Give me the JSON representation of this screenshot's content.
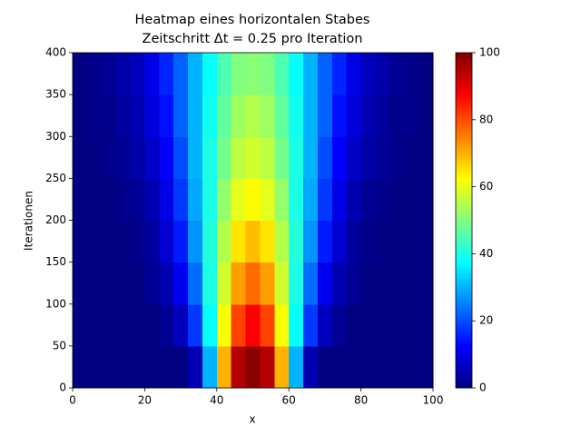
{
  "chart_data": {
    "type": "heatmap",
    "title": "Heatmap eines horizontalen Stabes",
    "subtitle": "Zeitschritt Δt = 0.25 pro Iteration",
    "x_label": "x",
    "y_label": "Iterationen",
    "colormap": "jet",
    "xbins": [
      0,
      4,
      8,
      12,
      16,
      20,
      24,
      28,
      32,
      36,
      40,
      44,
      48,
      52,
      56,
      60,
      64,
      68,
      72,
      76,
      80,
      84,
      88,
      92,
      96,
      100
    ],
    "ybins": [
      0,
      50,
      100,
      150,
      200,
      250,
      300,
      350,
      400
    ],
    "values": [
      [
        0,
        0,
        0,
        0,
        0,
        0,
        0,
        0,
        5,
        30,
        70,
        95,
        99,
        95,
        70,
        30,
        5,
        0,
        0,
        0,
        0,
        0,
        0,
        0,
        0
      ],
      [
        0,
        0,
        0,
        0,
        0,
        0,
        2,
        6,
        18,
        38,
        62,
        81,
        88,
        81,
        62,
        38,
        18,
        6,
        2,
        0,
        0,
        0,
        0,
        0,
        0
      ],
      [
        0,
        0,
        0,
        0,
        0,
        2,
        5,
        11,
        23,
        40,
        58,
        72,
        77,
        72,
        58,
        40,
        23,
        11,
        5,
        2,
        0,
        0,
        0,
        0,
        0
      ],
      [
        0,
        0,
        0,
        0,
        1,
        3,
        8,
        15,
        27,
        41,
        55,
        65,
        69,
        65,
        55,
        41,
        27,
        15,
        8,
        3,
        1,
        0,
        0,
        0,
        0
      ],
      [
        0,
        0,
        0,
        1,
        2,
        5,
        10,
        18,
        29,
        40,
        52,
        60,
        63,
        60,
        52,
        40,
        29,
        18,
        10,
        5,
        2,
        1,
        0,
        0,
        0
      ],
      [
        0,
        0,
        1,
        2,
        4,
        7,
        12,
        20,
        30,
        40,
        49,
        56,
        58,
        56,
        49,
        40,
        30,
        20,
        12,
        7,
        4,
        2,
        1,
        0,
        0
      ],
      [
        0,
        1,
        1,
        3,
        5,
        9,
        14,
        22,
        30,
        39,
        47,
        53,
        55,
        53,
        47,
        39,
        30,
        22,
        14,
        9,
        5,
        3,
        1,
        1,
        0
      ],
      [
        0,
        1,
        2,
        4,
        6,
        10,
        16,
        22,
        30,
        38,
        45,
        50,
        51,
        50,
        45,
        38,
        30,
        22,
        16,
        10,
        6,
        4,
        2,
        1,
        0
      ]
    ],
    "xlim": [
      0,
      100
    ],
    "ylim": [
      0,
      400
    ],
    "xticks": [
      0,
      20,
      40,
      60,
      80,
      100
    ],
    "yticks": [
      0,
      50,
      100,
      150,
      200,
      250,
      300,
      350,
      400
    ],
    "colorbar_lim": [
      0,
      100
    ],
    "colorbar_ticks": [
      0,
      20,
      40,
      60,
      80,
      100
    ]
  }
}
